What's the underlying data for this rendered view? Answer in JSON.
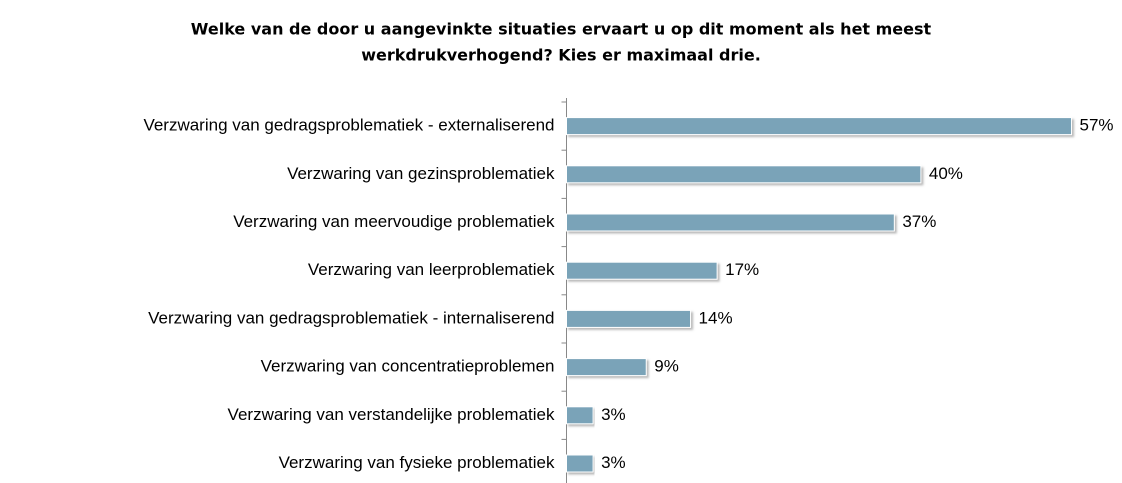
{
  "chart_data": {
    "type": "bar",
    "title": [
      "Welke van de door u aangevinkte situaties ervaart u op dit moment als het meest",
      "werkdrukverhogend? Kies er maximaal drie."
    ],
    "categories": [
      "Verzwaring van gedragsproblematiek - externaliserend",
      "Verzwaring van gezinsproblematiek",
      "Verzwaring van meervoudige problematiek",
      "Verzwaring van leerproblematiek",
      "Verzwaring van gedragsproblematiek - internaliserend",
      "Verzwaring van concentratieproblemen",
      "Verzwaring van verstandelijke problematiek",
      "Verzwaring van fysieke problematiek"
    ],
    "values": [
      57,
      40,
      37,
      17,
      14,
      9,
      3,
      3
    ],
    "value_labels": [
      "57%",
      "40%",
      "37%",
      "17%",
      "14%",
      "9%",
      "3%",
      "3%"
    ],
    "color": "#7aa3b8"
  }
}
